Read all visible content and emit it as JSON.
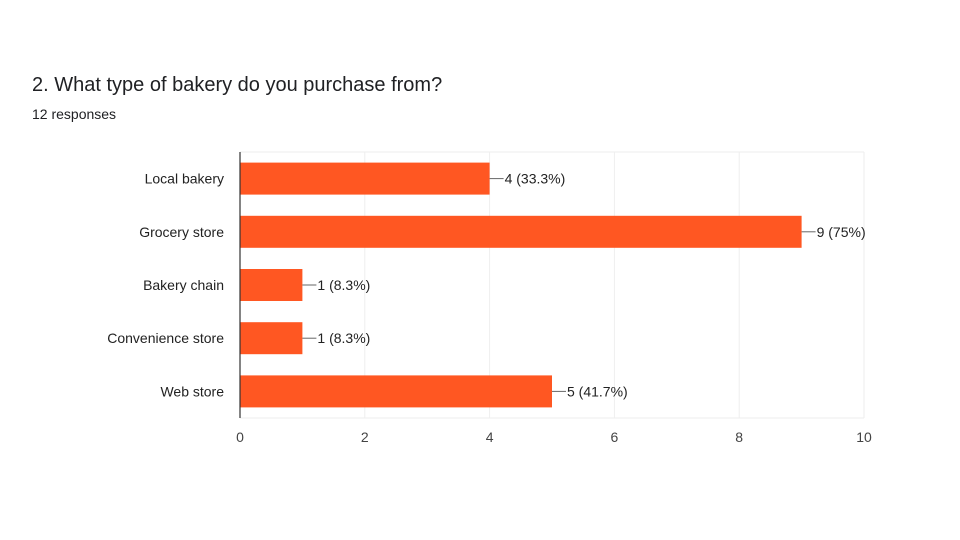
{
  "question": {
    "title": "2. What type of bakery do you purchase from?",
    "responses": "12 responses"
  },
  "colors": {
    "bar": "#ff5722",
    "grid": "#eeeeee",
    "axis": "#333333"
  },
  "chart_data": {
    "type": "bar",
    "orientation": "horizontal",
    "categories": [
      "Local bakery",
      "Grocery store",
      "Bakery chain",
      "Convenience store",
      "Web store"
    ],
    "values": [
      4,
      9,
      1,
      1,
      5
    ],
    "data_labels": [
      "4 (33.3%)",
      "9 (75%)",
      "1 (8.3%)",
      "1 (8.3%)",
      "5 (41.7%)"
    ],
    "x_ticks": [
      0,
      2,
      4,
      6,
      8,
      10
    ],
    "xlim": [
      0,
      10
    ],
    "grid": true,
    "legend": false
  }
}
